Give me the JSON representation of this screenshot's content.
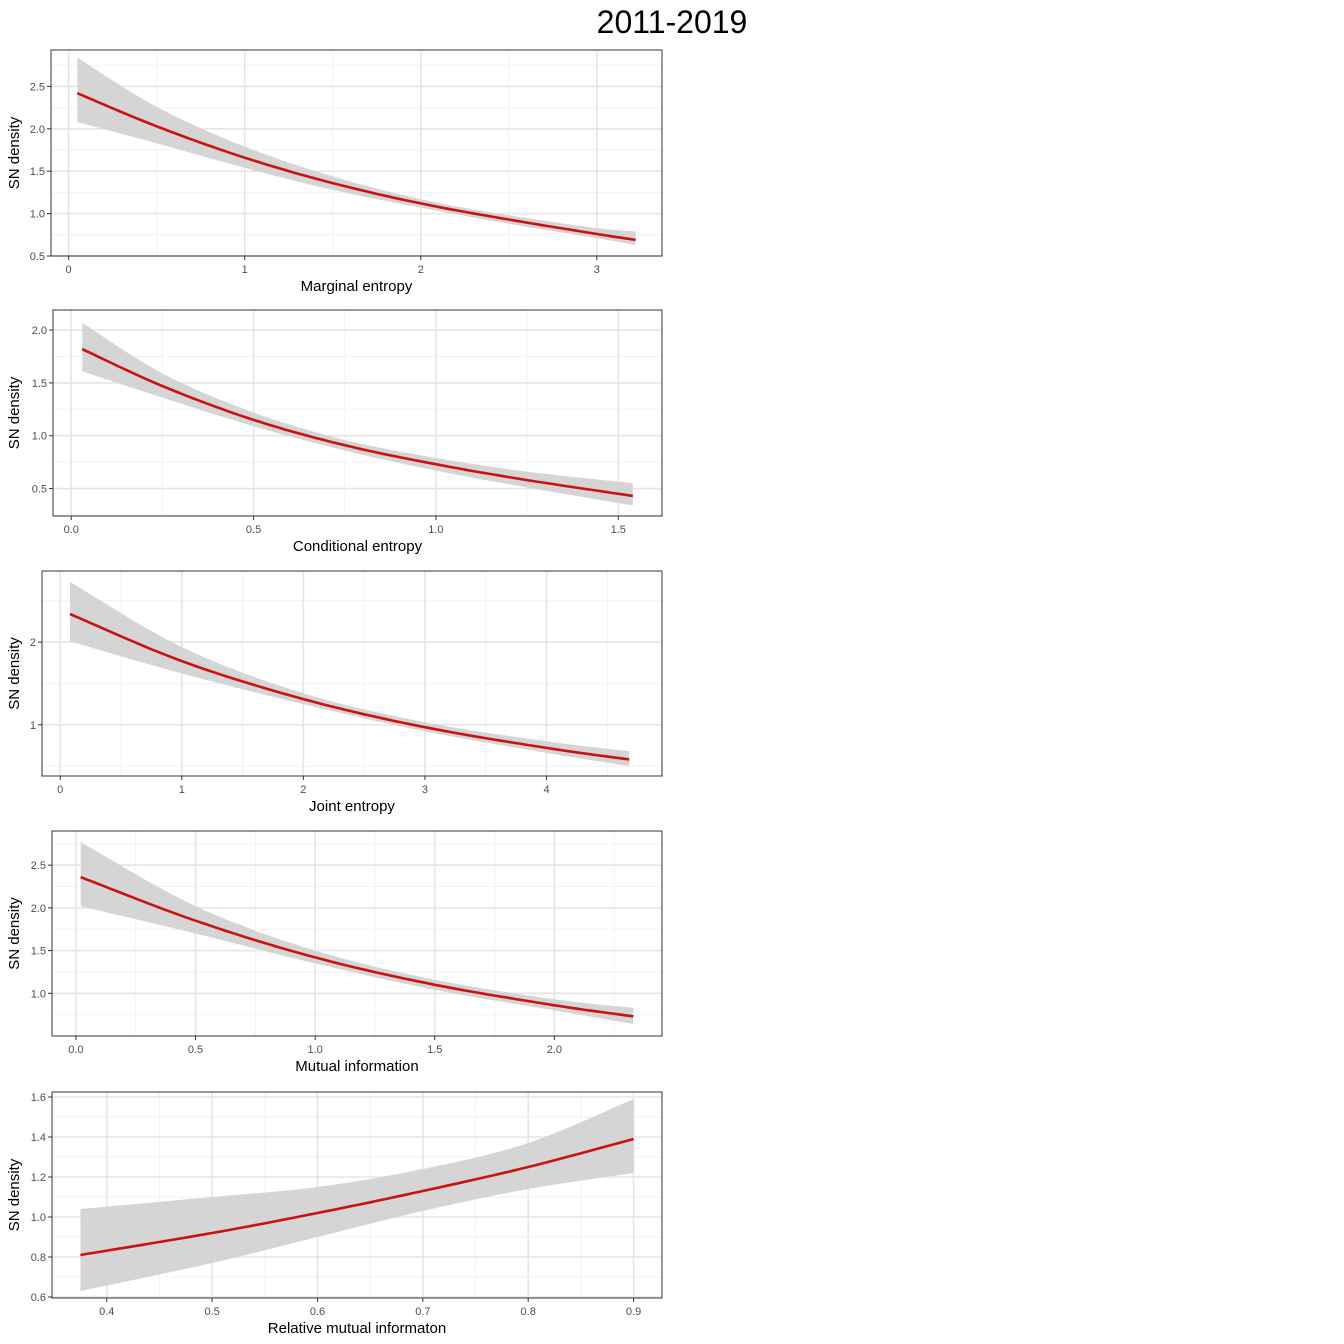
{
  "figure": {
    "title": "2011-2019"
  },
  "colors": {
    "line": "#cc1111",
    "band": "#d3d3d3",
    "panel_border": "#333333",
    "grid_major": "#e5e5e5",
    "grid_minor": "#f2f2f2"
  },
  "chart_data": [
    {
      "type": "line",
      "xlabel": "Marginal entropy",
      "ylabel": "SN density",
      "xlim": [
        -0.1,
        3.37
      ],
      "ylim": [
        0.5,
        2.93
      ],
      "x_ticks": [
        0,
        1,
        2,
        3
      ],
      "x_tick_labels": [
        "0",
        "1",
        "2",
        "3"
      ],
      "y_ticks": [
        0.5,
        1.0,
        1.5,
        2.0,
        2.5
      ],
      "y_tick_labels": [
        "0.5",
        "1.0",
        "1.5",
        "2.0",
        "2.5"
      ],
      "grid": true,
      "x": [
        0.05,
        0.5,
        1.0,
        1.5,
        2.0,
        2.5,
        3.0,
        3.22
      ],
      "fit": [
        2.42,
        2.03,
        1.66,
        1.36,
        1.12,
        0.93,
        0.76,
        0.69
      ],
      "lower": [
        2.08,
        1.83,
        1.54,
        1.28,
        1.07,
        0.88,
        0.71,
        0.63
      ],
      "upper": [
        2.84,
        2.26,
        1.79,
        1.44,
        1.17,
        0.98,
        0.83,
        0.79
      ]
    },
    {
      "type": "line",
      "xlabel": "Conditional entropy",
      "ylabel": "SN density",
      "xlim": [
        -0.05,
        1.62
      ],
      "ylim": [
        0.24,
        2.19
      ],
      "x_ticks": [
        0.0,
        0.5,
        1.0,
        1.5
      ],
      "x_tick_labels": [
        "0.0",
        "0.5",
        "1.0",
        "1.5"
      ],
      "y_ticks": [
        0.5,
        1.0,
        1.5,
        2.0
      ],
      "y_tick_labels": [
        "0.5",
        "1.0",
        "1.5",
        "2.0"
      ],
      "grid": true,
      "x": [
        0.03,
        0.25,
        0.5,
        0.75,
        1.0,
        1.25,
        1.54
      ],
      "fit": [
        1.82,
        1.47,
        1.15,
        0.91,
        0.73,
        0.58,
        0.43
      ],
      "lower": [
        1.61,
        1.36,
        1.09,
        0.86,
        0.67,
        0.51,
        0.34
      ],
      "upper": [
        2.07,
        1.59,
        1.22,
        0.96,
        0.79,
        0.66,
        0.55
      ]
    },
    {
      "type": "line",
      "xlabel": "Joint entropy",
      "ylabel": "SN density",
      "xlim": [
        -0.15,
        4.95
      ],
      "ylim": [
        0.38,
        2.86
      ],
      "x_ticks": [
        0,
        1,
        2,
        3,
        4
      ],
      "x_tick_labels": [
        "0",
        "1",
        "2",
        "3",
        "4"
      ],
      "y_ticks": [
        1,
        2
      ],
      "y_tick_labels": [
        "1",
        "2"
      ],
      "grid": true,
      "x": [
        0.08,
        1.0,
        2.0,
        3.0,
        4.0,
        4.68
      ],
      "fit": [
        2.34,
        1.77,
        1.31,
        0.97,
        0.72,
        0.58
      ],
      "lower": [
        2.01,
        1.62,
        1.25,
        0.92,
        0.66,
        0.5
      ],
      "upper": [
        2.73,
        1.94,
        1.38,
        1.03,
        0.8,
        0.68
      ]
    },
    {
      "type": "line",
      "xlabel": "Mutual information",
      "ylabel": "SN density",
      "xlim": [
        -0.1,
        2.45
      ],
      "ylim": [
        0.5,
        2.9
      ],
      "x_ticks": [
        0.0,
        0.5,
        1.0,
        1.5,
        2.0
      ],
      "x_tick_labels": [
        "0.0",
        "0.5",
        "1.0",
        "1.5",
        "2.0"
      ],
      "y_ticks": [
        1.0,
        1.5,
        2.0,
        2.5
      ],
      "y_tick_labels": [
        "1.0",
        "1.5",
        "2.0",
        "2.5"
      ],
      "grid": true,
      "x": [
        0.02,
        0.5,
        1.0,
        1.5,
        2.0,
        2.33
      ],
      "fit": [
        2.36,
        1.85,
        1.42,
        1.1,
        0.86,
        0.73
      ],
      "lower": [
        2.02,
        1.7,
        1.35,
        1.04,
        0.8,
        0.64
      ],
      "upper": [
        2.77,
        2.02,
        1.5,
        1.16,
        0.93,
        0.83
      ]
    },
    {
      "type": "line",
      "xlabel": "Relative mutual informaton",
      "ylabel": "SN density",
      "xlim": [
        0.348,
        0.927
      ],
      "ylim": [
        0.595,
        1.625
      ],
      "x_ticks": [
        0.4,
        0.5,
        0.6,
        0.7,
        0.8,
        0.9
      ],
      "x_tick_labels": [
        "0.4",
        "0.5",
        "0.6",
        "0.7",
        "0.8",
        "0.9"
      ],
      "y_ticks": [
        0.6,
        0.8,
        1.0,
        1.2,
        1.4,
        1.6
      ],
      "y_tick_labels": [
        "0.6",
        "0.8",
        "1.0",
        "1.2",
        "1.4",
        "1.6"
      ],
      "grid": true,
      "x": [
        0.375,
        0.5,
        0.6,
        0.7,
        0.8,
        0.9
      ],
      "fit": [
        0.81,
        0.92,
        1.02,
        1.13,
        1.25,
        1.39
      ],
      "lower": [
        0.63,
        0.77,
        0.9,
        1.03,
        1.14,
        1.22
      ],
      "upper": [
        1.04,
        1.1,
        1.15,
        1.24,
        1.37,
        1.59
      ]
    }
  ]
}
